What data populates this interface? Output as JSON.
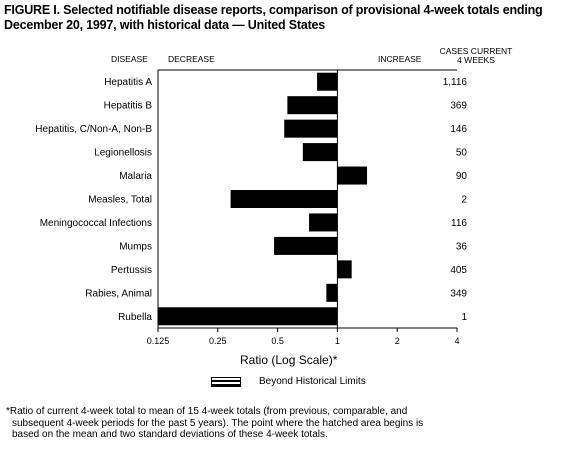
{
  "title": "FIGURE I. Selected notifiable disease reports, comparison of provisional 4-week totals ending December 20, 1997, with historical data — United States",
  "headers": {
    "disease": "DISEASE",
    "decrease": "DECREASE",
    "increase": "INCREASE",
    "cases": "CASES CURRENT",
    "cases2": "4 WEEKS"
  },
  "axis_title": "Ratio (Log Scale)*",
  "legend": {
    "label": "Beyond Historical Limits"
  },
  "footnote": {
    "line1": "*Ratio of current 4-week total to mean of 15 4-week totals (from previous, comparable, and",
    "line2": "subsequent 4-week periods for the past 5 years). The point where the hatched area begins is",
    "line3": "based on the mean and two standard deviations of these 4-week totals."
  },
  "chart_data": {
    "type": "bar",
    "orientation": "horizontal",
    "scale": "log2",
    "xlim": [
      0.125,
      4
    ],
    "baseline": 1,
    "ticks": [
      "0.125",
      "0.25",
      "0.5",
      "1",
      "2",
      "4"
    ],
    "tick_values": [
      0.125,
      0.25,
      0.5,
      1,
      2,
      4
    ],
    "categories": [
      "Hepatitis A",
      "Hepatitis B",
      "Hepatitis, C/Non-A, Non-B",
      "Legionellosis",
      "Malaria",
      "Measles, Total",
      "Meningococcal Infections",
      "Mumps",
      "Pertussis",
      "Rabies, Animal",
      "Rubella"
    ],
    "values": [
      0.79,
      0.56,
      0.54,
      0.67,
      1.41,
      0.29,
      0.72,
      0.48,
      1.18,
      0.88,
      0.125
    ],
    "cases": [
      "1,116",
      "369",
      "146",
      "50",
      "90",
      "2",
      "116",
      "36",
      "405",
      "349",
      "1"
    ]
  }
}
